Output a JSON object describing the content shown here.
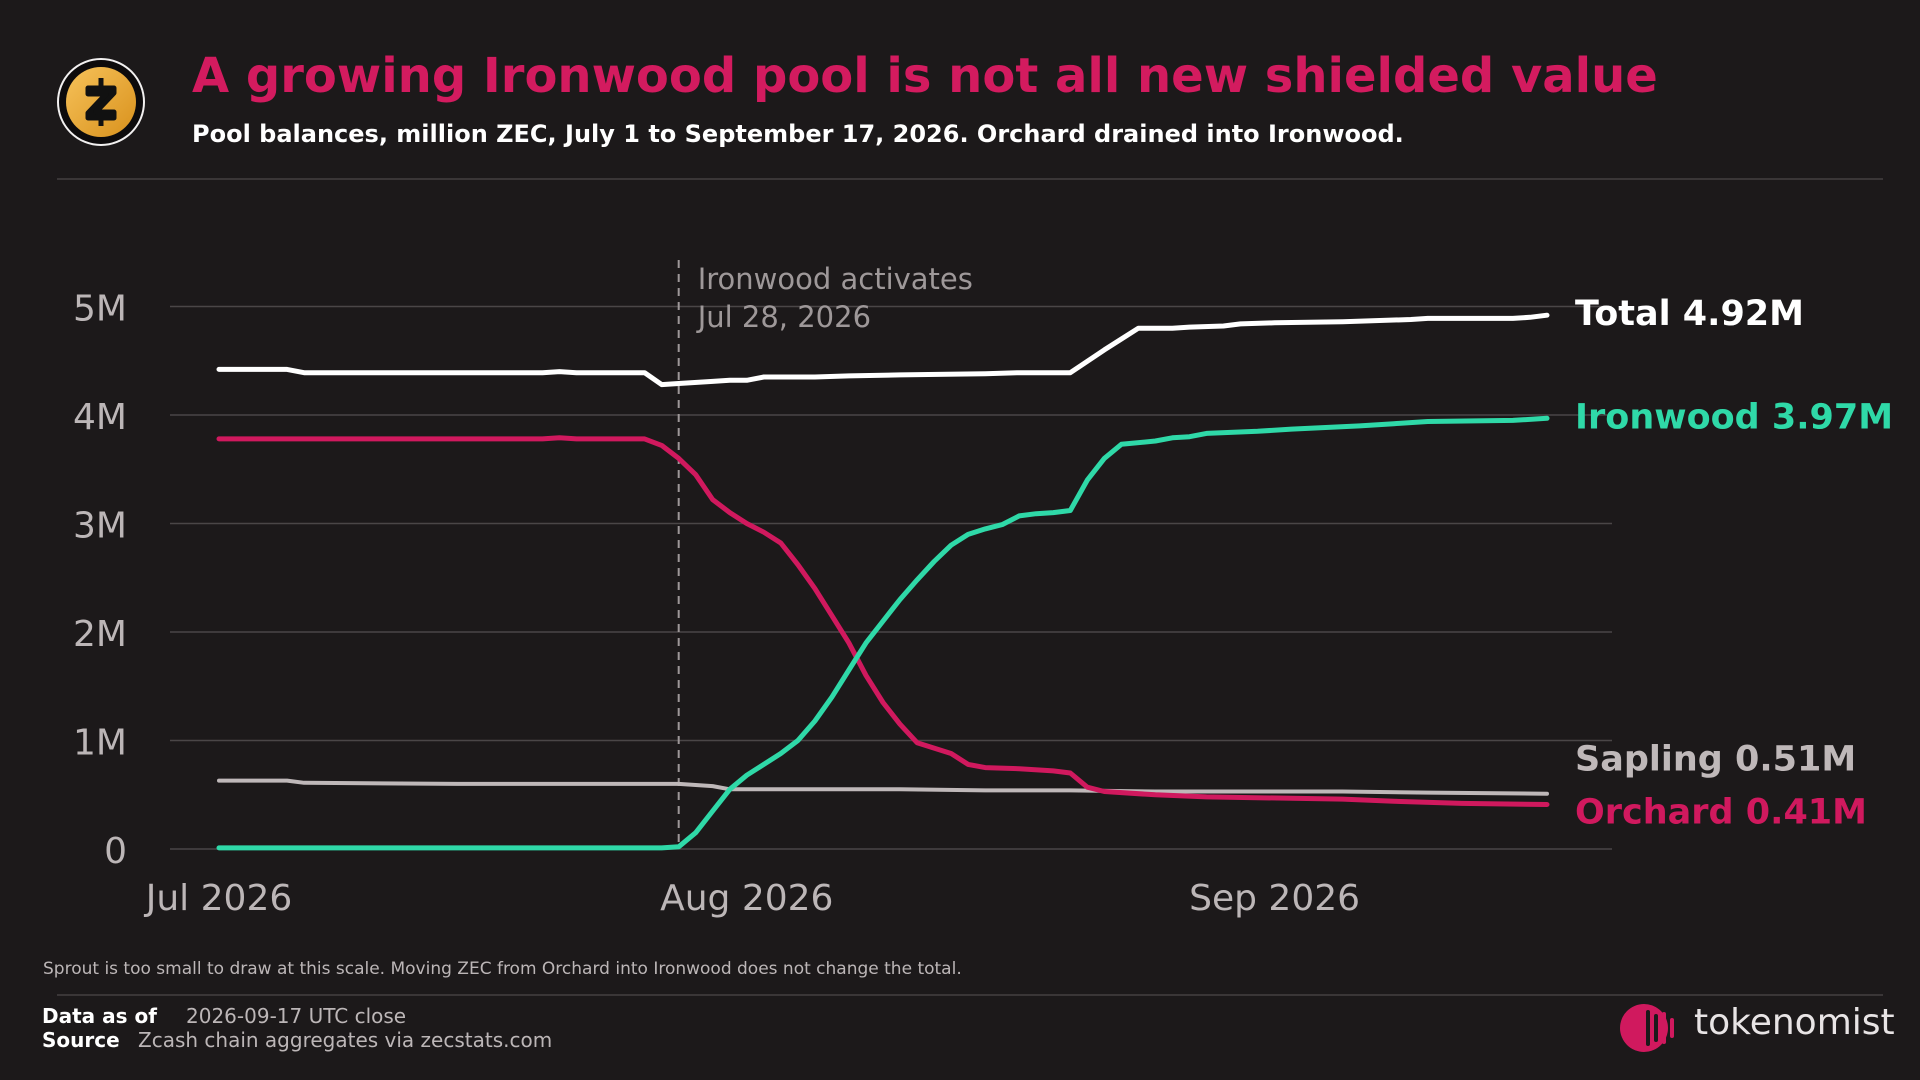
{
  "header": {
    "title": "A growing Ironwood pool is not all new shielded value",
    "subtitle": "Pool balances, million ZEC, July 1 to September 17, 2026. Orchard drained into Ironwood.",
    "logo_icon": "zcash-logo-icon"
  },
  "colors": {
    "background": "#1c191a",
    "title": "#d31b5f",
    "total": "#ffffff",
    "ironwood": "#2fd9a8",
    "sapling": "#bfb8b9",
    "orchard": "#d0195e",
    "grid": "#4a4647",
    "annotation": "#9e9899"
  },
  "chart_data": {
    "type": "line",
    "x_start": "2026-07-01",
    "x_end": "2026-09-17",
    "x_ticks": [
      {
        "date": "2026-07-01",
        "label": "Jul 2026"
      },
      {
        "date": "2026-08-01",
        "label": "Aug 2026"
      },
      {
        "date": "2026-09-01",
        "label": "Sep 2026"
      }
    ],
    "ylim": [
      0,
      5.5
    ],
    "y_ticks": [
      {
        "value": 0,
        "label": "0"
      },
      {
        "value": 1,
        "label": "1M"
      },
      {
        "value": 2,
        "label": "2M"
      },
      {
        "value": 3,
        "label": "3M"
      },
      {
        "value": 4,
        "label": "4M"
      },
      {
        "value": 5,
        "label": "5M"
      }
    ],
    "grid": true,
    "annotation": {
      "date": "2026-07-28",
      "line1": "Ironwood activates",
      "line2": "Jul 28, 2026"
    },
    "series": [
      {
        "key": "total",
        "label": "Total 4.92M",
        "points": [
          [
            "2026-07-01",
            4.42
          ],
          [
            "2026-07-05",
            4.42
          ],
          [
            "2026-07-06",
            4.39
          ],
          [
            "2026-07-10",
            4.39
          ],
          [
            "2026-07-15",
            4.39
          ],
          [
            "2026-07-20",
            4.39
          ],
          [
            "2026-07-21",
            4.4
          ],
          [
            "2026-07-22",
            4.39
          ],
          [
            "2026-07-26",
            4.39
          ],
          [
            "2026-07-27",
            4.28
          ],
          [
            "2026-07-28",
            4.29
          ],
          [
            "2026-07-30",
            4.31
          ],
          [
            "2026-07-31",
            4.32
          ],
          [
            "2026-08-01",
            4.32
          ],
          [
            "2026-08-02",
            4.35
          ],
          [
            "2026-08-05",
            4.35
          ],
          [
            "2026-08-07",
            4.36
          ],
          [
            "2026-08-10",
            4.37
          ],
          [
            "2026-08-15",
            4.38
          ],
          [
            "2026-08-17",
            4.39
          ],
          [
            "2026-08-18",
            4.39
          ],
          [
            "2026-08-20",
            4.39
          ],
          [
            "2026-08-22",
            4.6
          ],
          [
            "2026-08-23",
            4.7
          ],
          [
            "2026-08-24",
            4.8
          ],
          [
            "2026-08-26",
            4.8
          ],
          [
            "2026-08-27",
            4.81
          ],
          [
            "2026-08-29",
            4.82
          ],
          [
            "2026-08-30",
            4.84
          ],
          [
            "2026-09-01",
            4.85
          ],
          [
            "2026-09-05",
            4.86
          ],
          [
            "2026-09-09",
            4.88
          ],
          [
            "2026-09-10",
            4.89
          ],
          [
            "2026-09-15",
            4.89
          ],
          [
            "2026-09-16",
            4.9
          ],
          [
            "2026-09-17",
            4.92
          ]
        ]
      },
      {
        "key": "ironwood",
        "label": "Ironwood 3.97M",
        "points": [
          [
            "2026-07-01",
            0.01
          ],
          [
            "2026-07-20",
            0.01
          ],
          [
            "2026-07-27",
            0.01
          ],
          [
            "2026-07-28",
            0.02
          ],
          [
            "2026-07-29",
            0.15
          ],
          [
            "2026-07-30",
            0.35
          ],
          [
            "2026-07-31",
            0.55
          ],
          [
            "2026-08-01",
            0.68
          ],
          [
            "2026-08-02",
            0.78
          ],
          [
            "2026-08-03",
            0.88
          ],
          [
            "2026-08-04",
            1.0
          ],
          [
            "2026-08-05",
            1.18
          ],
          [
            "2026-08-06",
            1.4
          ],
          [
            "2026-08-07",
            1.65
          ],
          [
            "2026-08-08",
            1.9
          ],
          [
            "2026-08-09",
            2.1
          ],
          [
            "2026-08-10",
            2.3
          ],
          [
            "2026-08-11",
            2.48
          ],
          [
            "2026-08-12",
            2.65
          ],
          [
            "2026-08-13",
            2.8
          ],
          [
            "2026-08-14",
            2.9
          ],
          [
            "2026-08-15",
            2.95
          ],
          [
            "2026-08-16",
            2.99
          ],
          [
            "2026-08-17",
            3.07
          ],
          [
            "2026-08-18",
            3.09
          ],
          [
            "2026-08-19",
            3.1
          ],
          [
            "2026-08-20",
            3.12
          ],
          [
            "2026-08-21",
            3.4
          ],
          [
            "2026-08-22",
            3.6
          ],
          [
            "2026-08-23",
            3.73
          ],
          [
            "2026-08-25",
            3.76
          ],
          [
            "2026-08-26",
            3.79
          ],
          [
            "2026-08-27",
            3.8
          ],
          [
            "2026-08-28",
            3.83
          ],
          [
            "2026-08-31",
            3.85
          ],
          [
            "2026-09-02",
            3.87
          ],
          [
            "2026-09-06",
            3.9
          ],
          [
            "2026-09-08",
            3.92
          ],
          [
            "2026-09-10",
            3.94
          ],
          [
            "2026-09-15",
            3.95
          ],
          [
            "2026-09-17",
            3.97
          ]
        ]
      },
      {
        "key": "sapling",
        "label": "Sapling 0.51M",
        "points": [
          [
            "2026-07-01",
            0.63
          ],
          [
            "2026-07-05",
            0.63
          ],
          [
            "2026-07-06",
            0.61
          ],
          [
            "2026-07-15",
            0.6
          ],
          [
            "2026-07-25",
            0.6
          ],
          [
            "2026-07-28",
            0.6
          ],
          [
            "2026-07-30",
            0.58
          ],
          [
            "2026-07-31",
            0.55
          ],
          [
            "2026-08-10",
            0.55
          ],
          [
            "2026-08-15",
            0.54
          ],
          [
            "2026-08-20",
            0.54
          ],
          [
            "2026-08-25",
            0.53
          ],
          [
            "2026-09-05",
            0.53
          ],
          [
            "2026-09-10",
            0.52
          ],
          [
            "2026-09-17",
            0.51
          ]
        ]
      },
      {
        "key": "orchard",
        "label": "Orchard 0.41M",
        "points": [
          [
            "2026-07-01",
            3.78
          ],
          [
            "2026-07-10",
            3.78
          ],
          [
            "2026-07-20",
            3.78
          ],
          [
            "2026-07-21",
            3.79
          ],
          [
            "2026-07-22",
            3.78
          ],
          [
            "2026-07-26",
            3.78
          ],
          [
            "2026-07-27",
            3.72
          ],
          [
            "2026-07-28",
            3.6
          ],
          [
            "2026-07-29",
            3.45
          ],
          [
            "2026-07-30",
            3.22
          ],
          [
            "2026-07-31",
            3.1
          ],
          [
            "2026-08-01",
            3.0
          ],
          [
            "2026-08-02",
            2.92
          ],
          [
            "2026-08-03",
            2.82
          ],
          [
            "2026-08-04",
            2.62
          ],
          [
            "2026-08-05",
            2.4
          ],
          [
            "2026-08-06",
            2.15
          ],
          [
            "2026-08-07",
            1.9
          ],
          [
            "2026-08-08",
            1.6
          ],
          [
            "2026-08-09",
            1.35
          ],
          [
            "2026-08-10",
            1.15
          ],
          [
            "2026-08-11",
            0.98
          ],
          [
            "2026-08-12",
            0.93
          ],
          [
            "2026-08-13",
            0.88
          ],
          [
            "2026-08-14",
            0.78
          ],
          [
            "2026-08-15",
            0.75
          ],
          [
            "2026-08-17",
            0.74
          ],
          [
            "2026-08-19",
            0.72
          ],
          [
            "2026-08-20",
            0.7
          ],
          [
            "2026-08-21",
            0.57
          ],
          [
            "2026-08-22",
            0.53
          ],
          [
            "2026-08-25",
            0.5
          ],
          [
            "2026-08-28",
            0.48
          ],
          [
            "2026-09-05",
            0.46
          ],
          [
            "2026-09-08",
            0.44
          ],
          [
            "2026-09-12",
            0.42
          ],
          [
            "2026-09-17",
            0.41
          ]
        ]
      }
    ]
  },
  "footnote": "Sprout is too small to draw at this scale. Moving ZEC from Orchard into Ironwood does not change the total.",
  "footer": {
    "data_as_of_label": "Data as of",
    "data_as_of_value": "2026-09-17 UTC close",
    "source_label": "Source",
    "source_value": "Zcash chain aggregates via zecstats.com",
    "brand": "tokenomist",
    "brand_icon": "tokenomist-logo-icon"
  }
}
